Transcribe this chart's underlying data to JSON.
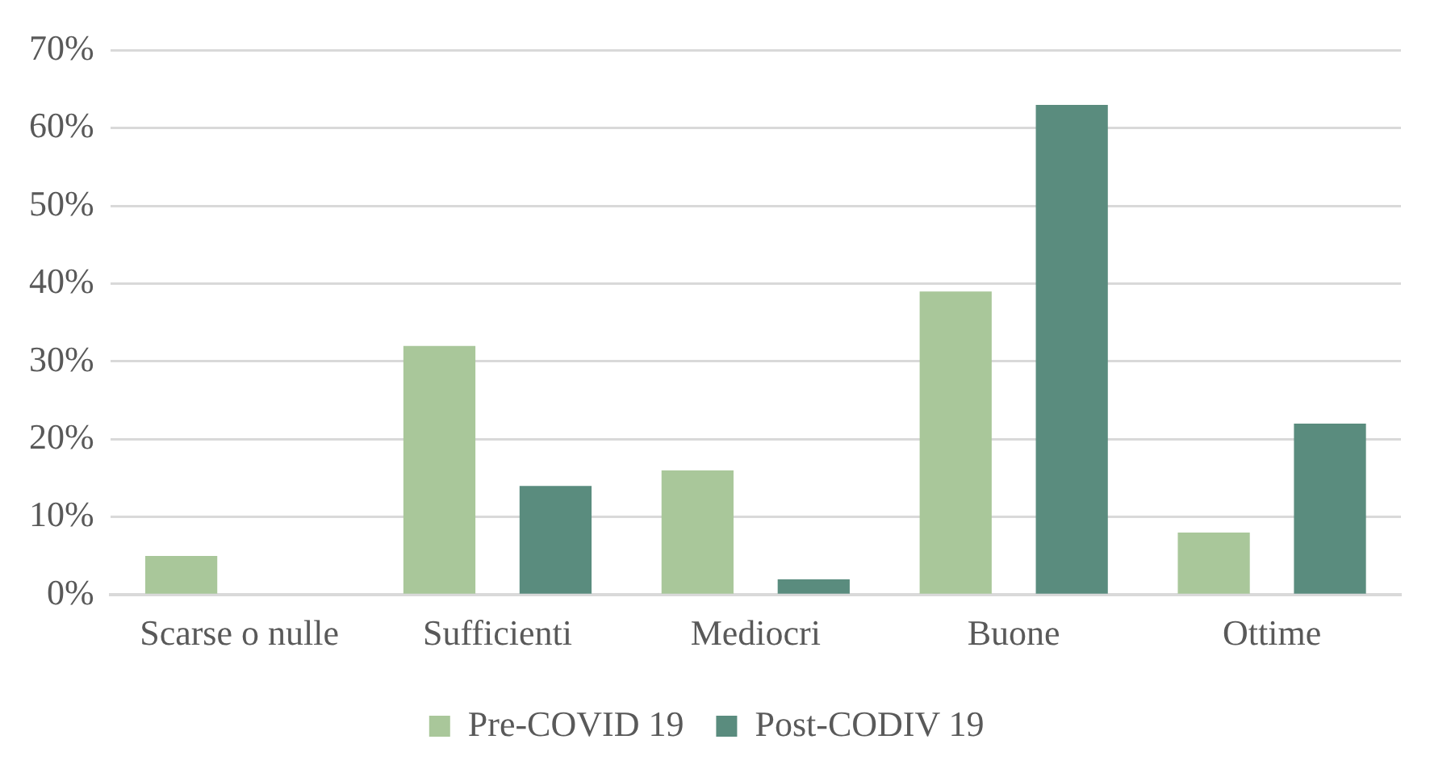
{
  "chart_data": {
    "type": "bar",
    "categories": [
      "Scarse o nulle",
      "Sufficienti",
      "Mediocri",
      "Buone",
      "Ottime"
    ],
    "series": [
      {
        "name": "Pre-COVID 19",
        "color": "#a9c79a",
        "values": [
          5,
          32,
          16,
          39,
          8
        ]
      },
      {
        "name": "Post-CODIV 19",
        "color": "#5a8c7e",
        "values": [
          0,
          14,
          2,
          63,
          22
        ]
      }
    ],
    "ylim": [
      0,
      70
    ],
    "yticks": [
      {
        "value": 0,
        "label": "0%"
      },
      {
        "value": 10,
        "label": "10%"
      },
      {
        "value": 20,
        "label": "20%"
      },
      {
        "value": 30,
        "label": "30%"
      },
      {
        "value": 40,
        "label": "40%"
      },
      {
        "value": 50,
        "label": "50%"
      },
      {
        "value": 60,
        "label": "60%"
      },
      {
        "value": 70,
        "label": "70%"
      }
    ],
    "grid": "y",
    "legend": "bottom"
  }
}
